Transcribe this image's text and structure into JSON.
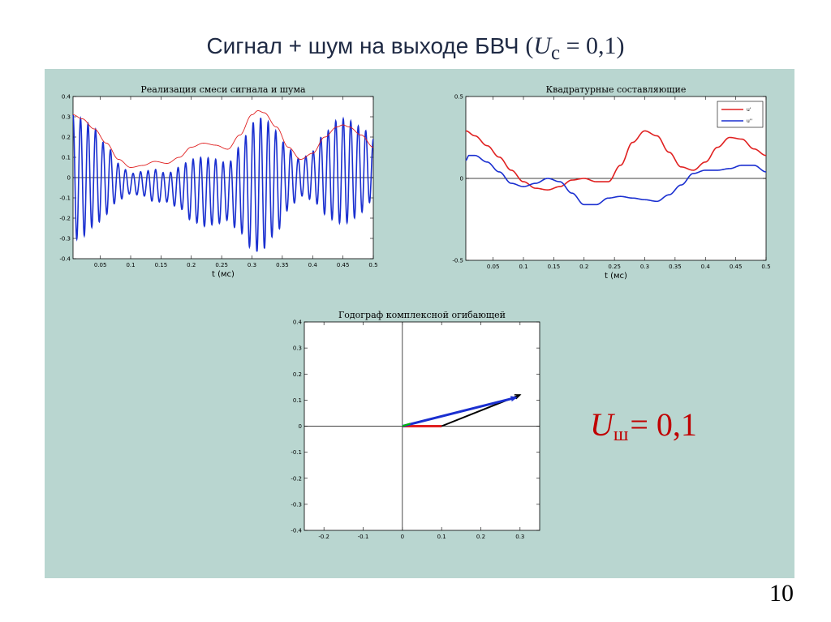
{
  "header": {
    "title_text": "Сигнал + шум на выходе БВЧ",
    "formula_open": "(",
    "formula_var": "U",
    "formula_sub": "c",
    "formula_eq": " = 0,1)"
  },
  "noise_label": {
    "var": "U",
    "sub": "ш",
    "eq": "= 0,1"
  },
  "page_number": "10",
  "colors": {
    "red": "#e02020",
    "blue": "#1a2fd0",
    "black": "#000000",
    "green": "#00c000",
    "panel": "#b9d6d0"
  },
  "chart_data": [
    {
      "type": "line",
      "title": "Реализация смеси сигнала и шума",
      "xlabel": "t (мс)",
      "ylabel": "",
      "xlim": [
        0.005,
        0.5
      ],
      "ylim": [
        -0.4,
        0.4
      ],
      "xticks": [
        0.05,
        0.1,
        0.15,
        0.2,
        0.25,
        0.3,
        0.35,
        0.4,
        0.45,
        0.5
      ],
      "xtick_labels": [
        "0.05",
        "0.1",
        "0.15",
        "0.2",
        "0.25",
        "0.3",
        "0.35",
        "0.4",
        "0.45",
        "0.5"
      ],
      "yticks": [
        -0.4,
        -0.3,
        -0.2,
        -0.1,
        0,
        0.1,
        0.2,
        0.3,
        0.4
      ],
      "ytick_labels": [
        "-0.4",
        "-0.3",
        "-0.2",
        "-0.1",
        "0",
        "0.1",
        "0.2",
        "0.3",
        "0.4"
      ],
      "grid": false,
      "carrier_cycles": 40,
      "series": [
        {
          "role": "envelope",
          "color": "#e02020",
          "x": [
            0.005,
            0.02,
            0.04,
            0.06,
            0.08,
            0.1,
            0.12,
            0.14,
            0.16,
            0.18,
            0.2,
            0.22,
            0.24,
            0.26,
            0.28,
            0.3,
            0.31,
            0.32,
            0.34,
            0.36,
            0.38,
            0.4,
            0.42,
            0.44,
            0.45,
            0.46,
            0.48,
            0.5
          ],
          "values": [
            0.31,
            0.29,
            0.24,
            0.17,
            0.09,
            0.05,
            0.06,
            0.08,
            0.07,
            0.1,
            0.15,
            0.17,
            0.16,
            0.14,
            0.21,
            0.31,
            0.33,
            0.32,
            0.25,
            0.15,
            0.09,
            0.12,
            0.2,
            0.25,
            0.26,
            0.25,
            0.21,
            0.15
          ]
        },
        {
          "role": "signal",
          "color": "#1a2fd0",
          "offset_x": [
            0.005,
            0.02,
            0.04,
            0.06,
            0.08,
            0.1,
            0.12,
            0.14,
            0.16,
            0.18,
            0.2,
            0.22,
            0.24,
            0.26,
            0.28,
            0.3,
            0.32,
            0.34,
            0.36,
            0.38,
            0.4,
            0.42,
            0.44,
            0.46,
            0.48,
            0.5
          ],
          "offset_values": [
            0.0,
            0.0,
            0.0,
            -0.01,
            -0.02,
            -0.03,
            -0.03,
            -0.04,
            -0.05,
            -0.05,
            -0.06,
            -0.07,
            -0.07,
            -0.07,
            -0.06,
            -0.04,
            -0.03,
            -0.02,
            -0.01,
            0.0,
            0.01,
            0.02,
            0.03,
            0.03,
            0.04,
            0.04
          ]
        }
      ]
    },
    {
      "type": "line",
      "title": "Квадратурные составляющие",
      "xlabel": "t (мс)",
      "ylabel": "",
      "xlim": [
        0.005,
        0.5
      ],
      "ylim": [
        -0.5,
        0.5
      ],
      "xticks": [
        0.05,
        0.1,
        0.15,
        0.2,
        0.25,
        0.3,
        0.35,
        0.4,
        0.45,
        0.5
      ],
      "xtick_labels": [
        "0.05",
        "0.1",
        "0.15",
        "0.2",
        "0.25",
        "0.3",
        "0.35",
        "0.4",
        "0.45",
        "0.5"
      ],
      "yticks": [
        -0.5,
        0,
        0.5
      ],
      "ytick_labels": [
        "-0.5",
        "0",
        "0.5"
      ],
      "grid": false,
      "legend_position": "top-right",
      "series": [
        {
          "name": "u'",
          "color": "#e02020",
          "x": [
            0.005,
            0.02,
            0.04,
            0.06,
            0.08,
            0.1,
            0.12,
            0.14,
            0.16,
            0.18,
            0.2,
            0.22,
            0.24,
            0.26,
            0.28,
            0.3,
            0.32,
            0.34,
            0.36,
            0.38,
            0.4,
            0.42,
            0.44,
            0.46,
            0.48,
            0.5
          ],
          "values": [
            0.29,
            0.26,
            0.2,
            0.13,
            0.05,
            -0.02,
            -0.06,
            -0.07,
            -0.05,
            -0.01,
            0.0,
            -0.02,
            -0.02,
            0.08,
            0.22,
            0.29,
            0.26,
            0.16,
            0.07,
            0.05,
            0.1,
            0.19,
            0.25,
            0.24,
            0.18,
            0.14
          ]
        },
        {
          "name": "u''",
          "color": "#1a2fd0",
          "x": [
            0.005,
            0.01,
            0.02,
            0.04,
            0.06,
            0.08,
            0.1,
            0.12,
            0.14,
            0.16,
            0.18,
            0.2,
            0.22,
            0.24,
            0.26,
            0.28,
            0.3,
            0.32,
            0.34,
            0.36,
            0.38,
            0.4,
            0.42,
            0.44,
            0.46,
            0.48,
            0.5
          ],
          "values": [
            0.11,
            0.14,
            0.14,
            0.1,
            0.04,
            -0.03,
            -0.05,
            -0.03,
            0.0,
            -0.02,
            -0.09,
            -0.16,
            -0.16,
            -0.12,
            -0.11,
            -0.12,
            -0.13,
            -0.14,
            -0.1,
            -0.04,
            0.03,
            0.05,
            0.05,
            0.06,
            0.08,
            0.08,
            0.04
          ]
        }
      ]
    },
    {
      "type": "scatter",
      "title": "Годограф комплексной огибающей",
      "xlabel": "",
      "ylabel": "",
      "xlim": [
        -0.25,
        0.35
      ],
      "ylim": [
        -0.4,
        0.4
      ],
      "xticks": [
        -0.2,
        -0.1,
        0,
        0.1,
        0.2,
        0.3
      ],
      "xtick_labels": [
        "-0.2",
        "-0.1",
        "0",
        "0.1",
        "0.2",
        "0.3"
      ],
      "yticks": [
        -0.4,
        -0.3,
        -0.2,
        -0.1,
        0,
        0.1,
        0.2,
        0.3,
        0.4
      ],
      "ytick_labels": [
        "-0.4",
        "-0.3",
        "-0.2",
        "-0.1",
        "0",
        "0.1",
        "0.2",
        "0.3",
        "0.4"
      ],
      "grid": false,
      "vectors": [
        {
          "role": "signal",
          "color": "#e02020",
          "from": [
            0,
            0
          ],
          "to": [
            0.1,
            0
          ]
        },
        {
          "role": "noise",
          "color": "#000000",
          "from": [
            0.1,
            0
          ],
          "to": [
            0.3,
            0.12
          ]
        },
        {
          "role": "sum",
          "color": "#1a2fd0",
          "from": [
            0,
            0
          ],
          "to": [
            0.29,
            0.11
          ]
        },
        {
          "role": "origin",
          "color": "#00c000",
          "from": [
            0,
            0
          ],
          "to": [
            0.02,
            0.01
          ]
        }
      ]
    }
  ]
}
